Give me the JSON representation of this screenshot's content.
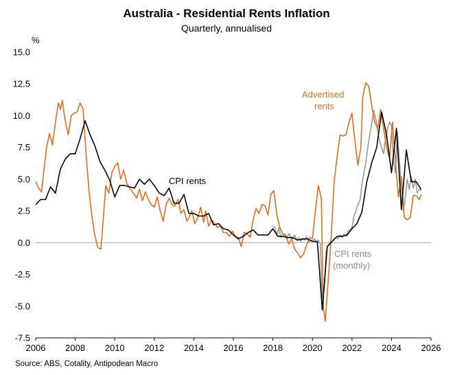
{
  "chart_data": {
    "type": "line",
    "title": "Australia - Residential Rents Inflation",
    "subtitle": "Quarterly, annualised",
    "ylabel": "%",
    "xlabel": "",
    "ylim": [
      -7.5,
      15.0
    ],
    "xlim": [
      2006,
      2026
    ],
    "yticks": [
      "15.0",
      "12.5",
      "10.0",
      "7.5",
      "5.0",
      "2.5",
      "0.0",
      "-2.5",
      "-5.0",
      "-7.5"
    ],
    "xticks": [
      "2006",
      "2008",
      "2010",
      "2012",
      "2014",
      "2016",
      "2018",
      "2020",
      "2022",
      "2024",
      "2026"
    ],
    "source": "Source: ABS, Cotality, Antipodean Macro",
    "colors": {
      "advertised": "#e06c1c",
      "cpi": "#000000",
      "cpi_monthly": "#9a9a9a",
      "zero_line": "#aaaaaa"
    },
    "annotations": {
      "advertised_line1": "Advertised",
      "advertised_line2": "rents",
      "cpi": "CPI rents",
      "monthly_line1": "CPI rents",
      "monthly_line2": "(monthly)"
    },
    "series": [
      {
        "name": "Advertised rents",
        "x": [
          2006.0,
          2006.15,
          2006.3,
          2006.4,
          2006.55,
          2006.7,
          2006.85,
          2007.0,
          2007.15,
          2007.25,
          2007.35,
          2007.45,
          2007.55,
          2007.65,
          2007.8,
          2007.95,
          2008.1,
          2008.25,
          2008.4,
          2008.55,
          2008.7,
          2008.85,
          2009.0,
          2009.15,
          2009.3,
          2009.45,
          2009.55,
          2009.7,
          2009.85,
          2010.0,
          2010.15,
          2010.3,
          2010.45,
          2010.6,
          2010.75,
          2010.9,
          2011.0,
          2011.1,
          2011.25,
          2011.4,
          2011.55,
          2011.7,
          2011.85,
          2012.0,
          2012.15,
          2012.3,
          2012.45,
          2012.6,
          2012.75,
          2012.9,
          2013.05,
          2013.2,
          2013.35,
          2013.5,
          2013.65,
          2013.8,
          2013.9,
          2014.05,
          2014.2,
          2014.35,
          2014.5,
          2014.6,
          2014.75,
          2014.9,
          2015.05,
          2015.2,
          2015.35,
          2015.5,
          2015.65,
          2015.8,
          2015.95,
          2016.1,
          2016.25,
          2016.4,
          2016.55,
          2016.7,
          2016.85,
          2017.0,
          2017.15,
          2017.3,
          2017.45,
          2017.6,
          2017.75,
          2017.9,
          2018.05,
          2018.2,
          2018.35,
          2018.5,
          2018.65,
          2018.8,
          2018.95,
          2019.1,
          2019.25,
          2019.4,
          2019.55,
          2019.7,
          2019.85,
          2020.0,
          2020.15,
          2020.3,
          2020.45,
          2020.55,
          2020.65,
          2020.8,
          2020.95,
          2021.1,
          2021.25,
          2021.4,
          2021.55,
          2021.7,
          2021.85,
          2022.0,
          2022.15,
          2022.3,
          2022.45,
          2022.55,
          2022.7,
          2022.85,
          2023.0,
          2023.15,
          2023.3,
          2023.45,
          2023.6,
          2023.75,
          2023.9,
          2024.05,
          2024.2,
          2024.35,
          2024.5,
          2024.65,
          2024.8,
          2024.95,
          2025.1,
          2025.25,
          2025.4,
          2025.5
        ],
        "values": [
          4.8,
          4.3,
          4.0,
          5.5,
          7.5,
          8.6,
          7.7,
          9.5,
          11.0,
          10.5,
          11.2,
          10.0,
          9.2,
          8.5,
          10.0,
          10.2,
          10.3,
          11.0,
          10.5,
          7.0,
          4.0,
          2.0,
          0.5,
          -0.4,
          -0.5,
          2.5,
          4.5,
          3.9,
          5.5,
          6.0,
          6.3,
          5.0,
          5.7,
          4.7,
          4.3,
          4.0,
          3.8,
          3.5,
          4.2,
          3.3,
          4.0,
          3.4,
          3.0,
          2.8,
          3.6,
          2.5,
          1.7,
          3.0,
          3.5,
          3.0,
          2.9,
          3.4,
          2.3,
          2.6,
          1.7,
          2.1,
          2.5,
          1.5,
          2.0,
          2.8,
          1.6,
          2.5,
          1.3,
          1.8,
          1.5,
          1.2,
          1.3,
          0.8,
          0.8,
          0.5,
          0.9,
          0.5,
          0.4,
          -0.3,
          0.8,
          0.7,
          0.4,
          1.8,
          2.7,
          2.3,
          3.0,
          2.9,
          2.2,
          3.8,
          4.1,
          2.2,
          1.2,
          0.7,
          0.6,
          -0.1,
          0.3,
          -0.5,
          -0.8,
          -1.2,
          -0.9,
          -0.2,
          0.4,
          0.3,
          2.5,
          4.5,
          3.5,
          -5.0,
          -6.2,
          -3.0,
          0.5,
          4.8,
          6.8,
          8.5,
          8.4,
          8.5,
          9.5,
          10.2,
          8.0,
          6.1,
          7.5,
          11.5,
          12.6,
          12.3,
          10.8,
          9.5,
          9.0,
          10.5,
          9.0,
          7.5,
          6.6,
          9.5,
          6.4,
          3.6,
          5.2,
          2.0,
          1.8,
          2.0,
          3.7,
          3.7,
          3.4,
          3.8
        ]
      },
      {
        "name": "CPI rents",
        "x": [
          2006.0,
          2006.25,
          2006.5,
          2006.75,
          2007.0,
          2007.25,
          2007.5,
          2007.75,
          2008.0,
          2008.25,
          2008.5,
          2008.75,
          2009.0,
          2009.25,
          2009.5,
          2009.75,
          2010.0,
          2010.25,
          2010.5,
          2010.75,
          2011.0,
          2011.25,
          2011.5,
          2011.75,
          2012.0,
          2012.25,
          2012.5,
          2012.75,
          2013.0,
          2013.25,
          2013.5,
          2013.75,
          2014.0,
          2014.25,
          2014.5,
          2014.75,
          2015.0,
          2015.25,
          2015.5,
          2015.75,
          2016.0,
          2016.25,
          2016.5,
          2016.75,
          2017.0,
          2017.25,
          2017.5,
          2017.75,
          2018.0,
          2018.25,
          2018.5,
          2018.75,
          2019.0,
          2019.25,
          2019.5,
          2019.75,
          2020.0,
          2020.25,
          2020.5,
          2020.75,
          2021.0,
          2021.25,
          2021.5,
          2021.75,
          2022.0,
          2022.25,
          2022.5,
          2022.75,
          2023.0,
          2023.25,
          2023.5,
          2023.75,
          2024.0,
          2024.25,
          2024.5,
          2024.75,
          2025.0,
          2025.25,
          2025.5
        ],
        "values": [
          3.0,
          3.4,
          3.4,
          4.4,
          3.9,
          5.8,
          6.6,
          7.0,
          7.0,
          8.2,
          9.6,
          8.5,
          7.6,
          6.4,
          5.7,
          4.9,
          3.6,
          4.5,
          4.5,
          4.4,
          4.3,
          5.0,
          4.6,
          5.0,
          4.5,
          3.9,
          3.7,
          4.3,
          3.1,
          3.1,
          3.8,
          2.3,
          2.3,
          2.1,
          2.1,
          2.3,
          1.4,
          1.5,
          1.1,
          1.0,
          0.6,
          0.3,
          0.5,
          0.8,
          1.0,
          0.6,
          0.6,
          0.6,
          1.1,
          0.5,
          0.5,
          0.4,
          0.4,
          0.2,
          0.3,
          0.3,
          0.1,
          0.1,
          -5.3,
          -0.3,
          0.1,
          0.5,
          0.5,
          0.6,
          1.1,
          1.5,
          2.4,
          4.8,
          6.3,
          7.5,
          10.3,
          8.5,
          5.5,
          9.0,
          2.6,
          7.3,
          4.8,
          4.8,
          4.2
        ]
      },
      {
        "name": "CPI rents (monthly)",
        "x": [
          2018.0,
          2018.1,
          2018.2,
          2018.3,
          2018.4,
          2018.5,
          2018.6,
          2018.7,
          2018.8,
          2018.9,
          2019.0,
          2019.1,
          2019.2,
          2019.3,
          2019.4,
          2019.5,
          2019.6,
          2019.7,
          2019.8,
          2019.9,
          2020.0,
          2020.1,
          2020.2,
          2020.3,
          2020.4,
          2020.5,
          2020.6,
          2020.7,
          2020.8,
          2020.9,
          2021.0,
          2021.1,
          2021.2,
          2021.3,
          2021.4,
          2021.5,
          2021.6,
          2021.7,
          2021.8,
          2021.9,
          2022.0,
          2022.1,
          2022.2,
          2022.3,
          2022.4,
          2022.5,
          2022.6,
          2022.7,
          2022.8,
          2022.9,
          2023.0,
          2023.1,
          2023.2,
          2023.3,
          2023.4,
          2023.5,
          2023.6,
          2023.7,
          2023.8,
          2023.9,
          2024.0,
          2024.1,
          2024.2,
          2024.3,
          2024.4,
          2024.5,
          2024.6,
          2024.7,
          2024.8,
          2024.9,
          2025.0,
          2025.1,
          2025.2,
          2025.3,
          2025.4,
          2025.5
        ],
        "values": [
          1.3,
          1.2,
          0.6,
          1.2,
          0.4,
          0.5,
          0.7,
          0.3,
          0.7,
          0.5,
          0.3,
          0.6,
          0.2,
          0.4,
          0.1,
          0.3,
          0.2,
          0.5,
          0.0,
          0.2,
          0.1,
          0.3,
          0.0,
          0.2,
          -0.1,
          -4.8,
          -3.5,
          -0.6,
          -0.2,
          0.0,
          0.1,
          0.3,
          0.4,
          0.3,
          0.6,
          0.4,
          0.7,
          0.5,
          0.9,
          1.0,
          1.2,
          2.1,
          2.5,
          3.0,
          3.3,
          4.5,
          5.5,
          6.3,
          7.5,
          8.5,
          9.4,
          10.4,
          9.8,
          8.8,
          8.0,
          7.5,
          7.0,
          8.2,
          9.0,
          9.5,
          9.2,
          6.5,
          5.5,
          8.7,
          6.5,
          4.5,
          2.5,
          3.6,
          5.0,
          4.2,
          5.2,
          4.3,
          5.0,
          3.9,
          4.2,
          4.1
        ]
      }
    ]
  }
}
